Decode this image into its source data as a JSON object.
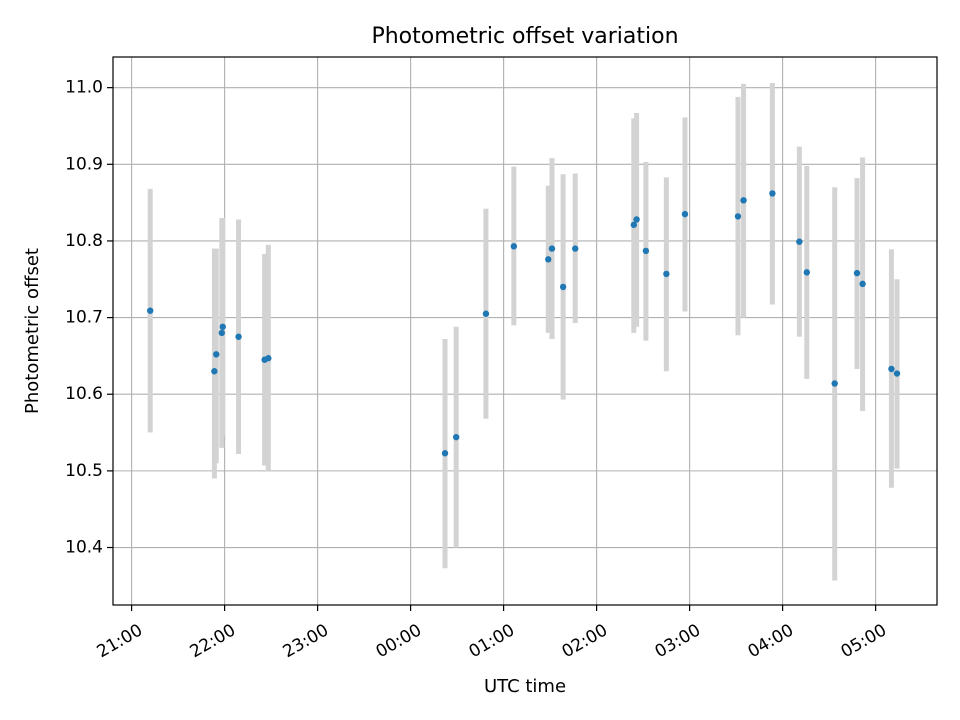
{
  "chart_data": {
    "type": "scatter",
    "title": "Photometric offset variation",
    "xlabel": "UTC time",
    "ylabel": "Photometric offset",
    "x_unit": "hours since 21:00 UTC",
    "xlim": [
      -0.2,
      8.66
    ],
    "ylim": [
      10.325,
      11.04
    ],
    "x_ticks": [
      {
        "value": 0,
        "label": "21:00"
      },
      {
        "value": 1,
        "label": "22:00"
      },
      {
        "value": 2,
        "label": "23:00"
      },
      {
        "value": 3,
        "label": "00:00"
      },
      {
        "value": 4,
        "label": "01:00"
      },
      {
        "value": 5,
        "label": "02:00"
      },
      {
        "value": 6,
        "label": "03:00"
      },
      {
        "value": 7,
        "label": "04:00"
      },
      {
        "value": 8,
        "label": "05:00"
      }
    ],
    "y_ticks": [
      {
        "value": 10.4,
        "label": "10.4"
      },
      {
        "value": 10.5,
        "label": "10.5"
      },
      {
        "value": 10.6,
        "label": "10.6"
      },
      {
        "value": 10.7,
        "label": "10.7"
      },
      {
        "value": 10.8,
        "label": "10.8"
      },
      {
        "value": 10.9,
        "label": "10.9"
      },
      {
        "value": 11.0,
        "label": "11.0"
      }
    ],
    "grid": true,
    "marker_color": "#1f77b4",
    "errorbar_color": "#d3d3d3",
    "points": [
      {
        "x": 0.2,
        "y": 10.709,
        "ylo": 10.55,
        "yhi": 10.868
      },
      {
        "x": 0.89,
        "y": 10.63,
        "ylo": 10.49,
        "yhi": 10.79
      },
      {
        "x": 0.91,
        "y": 10.652,
        "ylo": 10.51,
        "yhi": 10.79
      },
      {
        "x": 0.97,
        "y": 10.68,
        "ylo": 10.53,
        "yhi": 10.83
      },
      {
        "x": 0.98,
        "y": 10.688,
        "ylo": 10.545,
        "yhi": 10.83
      },
      {
        "x": 1.15,
        "y": 10.675,
        "ylo": 10.522,
        "yhi": 10.828
      },
      {
        "x": 1.43,
        "y": 10.645,
        "ylo": 10.507,
        "yhi": 10.783
      },
      {
        "x": 1.47,
        "y": 10.647,
        "ylo": 10.5,
        "yhi": 10.795
      },
      {
        "x": 3.37,
        "y": 10.523,
        "ylo": 10.373,
        "yhi": 10.672
      },
      {
        "x": 3.49,
        "y": 10.544,
        "ylo": 10.4,
        "yhi": 10.688
      },
      {
        "x": 3.81,
        "y": 10.705,
        "ylo": 10.568,
        "yhi": 10.842
      },
      {
        "x": 4.11,
        "y": 10.793,
        "ylo": 10.69,
        "yhi": 10.897
      },
      {
        "x": 4.48,
        "y": 10.776,
        "ylo": 10.68,
        "yhi": 10.872
      },
      {
        "x": 4.52,
        "y": 10.79,
        "ylo": 10.672,
        "yhi": 10.908
      },
      {
        "x": 4.64,
        "y": 10.74,
        "ylo": 10.593,
        "yhi": 10.887
      },
      {
        "x": 4.77,
        "y": 10.79,
        "ylo": 10.693,
        "yhi": 10.888
      },
      {
        "x": 5.4,
        "y": 10.821,
        "ylo": 10.68,
        "yhi": 10.96
      },
      {
        "x": 5.43,
        "y": 10.828,
        "ylo": 10.688,
        "yhi": 10.967
      },
      {
        "x": 5.53,
        "y": 10.787,
        "ylo": 10.67,
        "yhi": 10.903
      },
      {
        "x": 5.75,
        "y": 10.757,
        "ylo": 10.63,
        "yhi": 10.883
      },
      {
        "x": 5.95,
        "y": 10.835,
        "ylo": 10.708,
        "yhi": 10.961
      },
      {
        "x": 6.52,
        "y": 10.832,
        "ylo": 10.677,
        "yhi": 10.988
      },
      {
        "x": 6.58,
        "y": 10.853,
        "ylo": 10.7,
        "yhi": 11.005
      },
      {
        "x": 6.89,
        "y": 10.862,
        "ylo": 10.717,
        "yhi": 11.006
      },
      {
        "x": 7.18,
        "y": 10.799,
        "ylo": 10.675,
        "yhi": 10.923
      },
      {
        "x": 7.26,
        "y": 10.759,
        "ylo": 10.62,
        "yhi": 10.898
      },
      {
        "x": 7.56,
        "y": 10.614,
        "ylo": 10.357,
        "yhi": 10.87
      },
      {
        "x": 7.8,
        "y": 10.758,
        "ylo": 10.633,
        "yhi": 10.882
      },
      {
        "x": 7.86,
        "y": 10.744,
        "ylo": 10.578,
        "yhi": 10.909
      },
      {
        "x": 8.17,
        "y": 10.633,
        "ylo": 10.478,
        "yhi": 10.789
      },
      {
        "x": 8.23,
        "y": 10.627,
        "ylo": 10.503,
        "yhi": 10.75
      }
    ]
  }
}
